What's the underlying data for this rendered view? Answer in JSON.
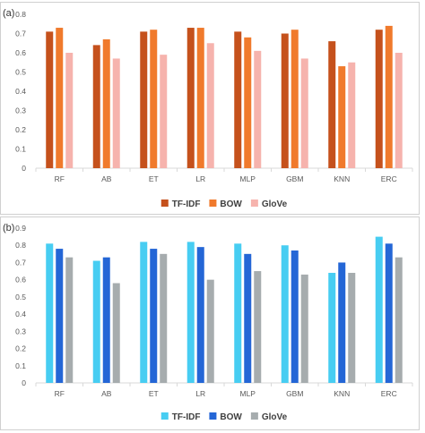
{
  "chart_data": [
    {
      "type": "bar",
      "panel_label": "(a)",
      "categories": [
        "RF",
        "AB",
        "ET",
        "LR",
        "MLP",
        "GBM",
        "KNN",
        "ERC"
      ],
      "series": [
        {
          "name": "TF-IDF",
          "color": "#c5511c",
          "values": [
            0.71,
            0.64,
            0.71,
            0.73,
            0.71,
            0.7,
            0.66,
            0.72
          ]
        },
        {
          "name": "BOW",
          "color": "#f07a2c",
          "values": [
            0.73,
            0.67,
            0.72,
            0.73,
            0.68,
            0.72,
            0.53,
            0.74
          ]
        },
        {
          "name": "GloVe",
          "color": "#f6b3ad",
          "values": [
            0.6,
            0.57,
            0.59,
            0.65,
            0.61,
            0.57,
            0.55,
            0.6
          ]
        }
      ],
      "ylim": [
        0,
        0.8
      ],
      "yticks": [
        "0",
        "0.1",
        "0.2",
        "0.3",
        "0.4",
        "0.5",
        "0.6",
        "0.7",
        "0.8"
      ],
      "grid": false,
      "legend": "bottom-center"
    },
    {
      "type": "bar",
      "panel_label": "(b)",
      "categories": [
        "RF",
        "AB",
        "ET",
        "LR",
        "MLP",
        "GBM",
        "KNN",
        "ERC"
      ],
      "series": [
        {
          "name": "TF-IDF",
          "color": "#47cdf2",
          "values": [
            0.81,
            0.71,
            0.82,
            0.82,
            0.81,
            0.8,
            0.64,
            0.85
          ]
        },
        {
          "name": "BOW",
          "color": "#2466d6",
          "values": [
            0.78,
            0.73,
            0.78,
            0.79,
            0.75,
            0.77,
            0.7,
            0.81
          ]
        },
        {
          "name": "GloVe",
          "color": "#a6acae",
          "values": [
            0.73,
            0.58,
            0.75,
            0.6,
            0.65,
            0.63,
            0.64,
            0.73
          ]
        }
      ],
      "ylim": [
        0,
        0.9
      ],
      "yticks": [
        "0",
        "0.1",
        "0.2",
        "0.3",
        "0.4",
        "0.5",
        "0.6",
        "0.7",
        "0.8",
        "0.9"
      ],
      "grid": false,
      "legend": "bottom-center"
    }
  ]
}
